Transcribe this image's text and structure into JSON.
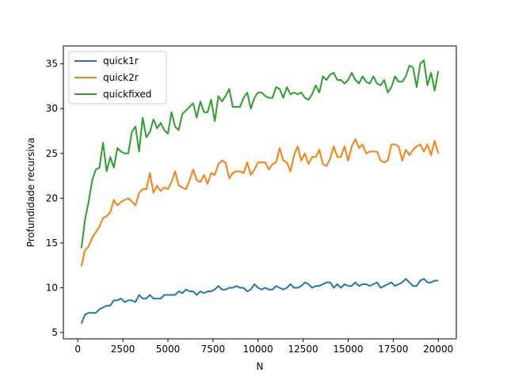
{
  "chart_data": {
    "type": "line",
    "xlabel": "N",
    "ylabel": "Profundidade recursiva",
    "xlim": [
      -800,
      21000
    ],
    "ylim": [
      4.3,
      37.0
    ],
    "xticks": [
      0,
      2500,
      5000,
      7500,
      10000,
      12500,
      15000,
      17500,
      20000
    ],
    "yticks": [
      5,
      10,
      15,
      20,
      25,
      30,
      35
    ],
    "grid": false,
    "legend_placement": "top-left",
    "series": [
      {
        "name": "quick1r",
        "color": "#1f77b4",
        "points": [
          [
            200,
            6.0
          ],
          [
            400,
            7.0
          ],
          [
            600,
            7.2
          ],
          [
            800,
            7.2
          ],
          [
            1000,
            7.2
          ],
          [
            1200,
            7.6
          ],
          [
            1400,
            7.8
          ],
          [
            1600,
            8.0
          ],
          [
            1800,
            8.0
          ],
          [
            2000,
            8.6
          ],
          [
            2200,
            8.6
          ],
          [
            2400,
            8.8
          ],
          [
            2600,
            8.4
          ],
          [
            2800,
            8.6
          ],
          [
            3000,
            8.6
          ],
          [
            3200,
            8.4
          ],
          [
            3400,
            9.2
          ],
          [
            3600,
            8.8
          ],
          [
            3800,
            8.8
          ],
          [
            4000,
            9.2
          ],
          [
            4200,
            8.8
          ],
          [
            4400,
            8.8
          ],
          [
            4600,
            8.8
          ],
          [
            4800,
            9.2
          ],
          [
            5000,
            9.2
          ],
          [
            5200,
            9.2
          ],
          [
            5400,
            9.2
          ],
          [
            5600,
            9.6
          ],
          [
            5800,
            9.4
          ],
          [
            6000,
            9.8
          ],
          [
            6200,
            9.6
          ],
          [
            6400,
            9.6
          ],
          [
            6600,
            9.2
          ],
          [
            6800,
            9.6
          ],
          [
            7000,
            9.4
          ],
          [
            7200,
            9.6
          ],
          [
            7400,
            9.6
          ],
          [
            7600,
            9.8
          ],
          [
            7800,
            10.2
          ],
          [
            8000,
            9.8
          ],
          [
            8200,
            9.8
          ],
          [
            8400,
            10.0
          ],
          [
            8600,
            10.0
          ],
          [
            8800,
            10.2
          ],
          [
            9000,
            10.0
          ],
          [
            9200,
            10.0
          ],
          [
            9400,
            9.6
          ],
          [
            9600,
            9.8
          ],
          [
            9800,
            10.4
          ],
          [
            10000,
            10.0
          ],
          [
            10200,
            9.8
          ],
          [
            10400,
            10.0
          ],
          [
            10600,
            9.8
          ],
          [
            10800,
            9.8
          ],
          [
            11000,
            10.2
          ],
          [
            11200,
            10.0
          ],
          [
            11400,
            9.8
          ],
          [
            11600,
            10.0
          ],
          [
            11800,
            10.4
          ],
          [
            12000,
            10.0
          ],
          [
            12200,
            10.0
          ],
          [
            12400,
            10.2
          ],
          [
            12600,
            10.6
          ],
          [
            12800,
            10.4
          ],
          [
            13000,
            10.0
          ],
          [
            13200,
            10.2
          ],
          [
            13400,
            10.2
          ],
          [
            13600,
            10.4
          ],
          [
            13800,
            10.6
          ],
          [
            14000,
            10.6
          ],
          [
            14200,
            10.0
          ],
          [
            14400,
            10.4
          ],
          [
            14600,
            10.0
          ],
          [
            14800,
            10.4
          ],
          [
            15000,
            10.2
          ],
          [
            15200,
            10.2
          ],
          [
            15400,
            10.6
          ],
          [
            15600,
            10.2
          ],
          [
            15800,
            10.4
          ],
          [
            16000,
            10.4
          ],
          [
            16200,
            10.2
          ],
          [
            16400,
            10.4
          ],
          [
            16600,
            10.6
          ],
          [
            16800,
            10.0
          ],
          [
            17000,
            10.2
          ],
          [
            17200,
            10.4
          ],
          [
            17400,
            10.6
          ],
          [
            17600,
            10.2
          ],
          [
            17800,
            10.4
          ],
          [
            18000,
            10.6
          ],
          [
            18200,
            11.0
          ],
          [
            18400,
            10.6
          ],
          [
            18600,
            10.2
          ],
          [
            18800,
            10.2
          ],
          [
            19000,
            10.8
          ],
          [
            19200,
            11.0
          ],
          [
            19400,
            10.6
          ],
          [
            19600,
            10.6
          ],
          [
            19800,
            10.8
          ],
          [
            20000,
            10.8
          ]
        ]
      },
      {
        "name": "quick2r",
        "color": "#ff7f0e",
        "points": [
          [
            200,
            12.4
          ],
          [
            400,
            14.2
          ],
          [
            600,
            14.6
          ],
          [
            800,
            15.6
          ],
          [
            1000,
            16.2
          ],
          [
            1200,
            16.8
          ],
          [
            1400,
            17.8
          ],
          [
            1600,
            18.0
          ],
          [
            1800,
            18.4
          ],
          [
            2000,
            19.8
          ],
          [
            2200,
            19.2
          ],
          [
            2400,
            19.6
          ],
          [
            2600,
            19.8
          ],
          [
            2800,
            20.0
          ],
          [
            3000,
            19.6
          ],
          [
            3200,
            19.2
          ],
          [
            3400,
            20.6
          ],
          [
            3600,
            21.0
          ],
          [
            3800,
            21.0
          ],
          [
            4000,
            22.8
          ],
          [
            4200,
            20.6
          ],
          [
            4400,
            21.4
          ],
          [
            4600,
            20.8
          ],
          [
            4800,
            21.2
          ],
          [
            5000,
            21.0
          ],
          [
            5200,
            21.8
          ],
          [
            5400,
            23.0
          ],
          [
            5600,
            21.4
          ],
          [
            5800,
            21.2
          ],
          [
            6000,
            21.0
          ],
          [
            6200,
            22.0
          ],
          [
            6400,
            23.2
          ],
          [
            6600,
            22.0
          ],
          [
            6800,
            21.8
          ],
          [
            7000,
            22.6
          ],
          [
            7200,
            21.6
          ],
          [
            7400,
            22.8
          ],
          [
            7600,
            22.6
          ],
          [
            7800,
            23.8
          ],
          [
            8000,
            24.2
          ],
          [
            8200,
            24.0
          ],
          [
            8400,
            22.2
          ],
          [
            8600,
            22.8
          ],
          [
            8800,
            23.0
          ],
          [
            9000,
            23.0
          ],
          [
            9200,
            22.8
          ],
          [
            9400,
            24.0
          ],
          [
            9600,
            22.6
          ],
          [
            9800,
            23.2
          ],
          [
            10000,
            24.0
          ],
          [
            10200,
            24.0
          ],
          [
            10400,
            24.0
          ],
          [
            10600,
            23.2
          ],
          [
            10800,
            23.8
          ],
          [
            11000,
            24.0
          ],
          [
            11200,
            25.6
          ],
          [
            11400,
            24.2
          ],
          [
            11600,
            24.0
          ],
          [
            11800,
            23.0
          ],
          [
            12000,
            24.8
          ],
          [
            12200,
            25.8
          ],
          [
            12400,
            24.2
          ],
          [
            12600,
            25.0
          ],
          [
            12800,
            23.8
          ],
          [
            13000,
            24.6
          ],
          [
            13200,
            24.6
          ],
          [
            13400,
            25.4
          ],
          [
            13600,
            23.8
          ],
          [
            13800,
            23.6
          ],
          [
            14000,
            24.4
          ],
          [
            14200,
            25.8
          ],
          [
            14400,
            24.6
          ],
          [
            14600,
            24.6
          ],
          [
            14800,
            25.8
          ],
          [
            15000,
            24.2
          ],
          [
            15200,
            25.8
          ],
          [
            15400,
            26.6
          ],
          [
            15600,
            25.6
          ],
          [
            15800,
            26.0
          ],
          [
            16000,
            25.0
          ],
          [
            16200,
            25.2
          ],
          [
            16400,
            25.2
          ],
          [
            16600,
            25.2
          ],
          [
            16800,
            24.2
          ],
          [
            17000,
            24.0
          ],
          [
            17200,
            24.2
          ],
          [
            17400,
            26.0
          ],
          [
            17600,
            26.0
          ],
          [
            17800,
            25.8
          ],
          [
            18000,
            24.2
          ],
          [
            18200,
            25.4
          ],
          [
            18400,
            24.8
          ],
          [
            18600,
            25.4
          ],
          [
            18800,
            25.8
          ],
          [
            19000,
            26.0
          ],
          [
            19200,
            25.2
          ],
          [
            19400,
            26.0
          ],
          [
            19600,
            24.8
          ],
          [
            19800,
            26.4
          ],
          [
            20000,
            25.0
          ]
        ]
      },
      {
        "name": "quickfixed",
        "color": "#2ca02c",
        "points": [
          [
            200,
            14.4
          ],
          [
            400,
            17.6
          ],
          [
            600,
            19.6
          ],
          [
            800,
            22.0
          ],
          [
            1000,
            23.2
          ],
          [
            1200,
            23.4
          ],
          [
            1400,
            26.2
          ],
          [
            1600,
            23.0
          ],
          [
            1800,
            24.6
          ],
          [
            2000,
            23.4
          ],
          [
            2200,
            25.6
          ],
          [
            2400,
            25.2
          ],
          [
            2600,
            25.0
          ],
          [
            2800,
            25.0
          ],
          [
            3000,
            27.4
          ],
          [
            3200,
            28.0
          ],
          [
            3400,
            25.2
          ],
          [
            3600,
            29.0
          ],
          [
            3800,
            26.8
          ],
          [
            4000,
            27.4
          ],
          [
            4200,
            28.8
          ],
          [
            4400,
            27.8
          ],
          [
            4600,
            28.4
          ],
          [
            4800,
            27.6
          ],
          [
            5000,
            27.2
          ],
          [
            5200,
            29.6
          ],
          [
            5400,
            28.0
          ],
          [
            5600,
            27.6
          ],
          [
            5800,
            29.4
          ],
          [
            6000,
            29.8
          ],
          [
            6200,
            30.2
          ],
          [
            6400,
            30.6
          ],
          [
            6600,
            29.0
          ],
          [
            6800,
            30.8
          ],
          [
            7000,
            29.6
          ],
          [
            7200,
            29.6
          ],
          [
            7400,
            31.0
          ],
          [
            7600,
            28.6
          ],
          [
            7800,
            31.4
          ],
          [
            8000,
            30.8
          ],
          [
            8200,
            31.4
          ],
          [
            8400,
            32.2
          ],
          [
            8600,
            30.2
          ],
          [
            8800,
            30.2
          ],
          [
            9000,
            30.2
          ],
          [
            9200,
            31.2
          ],
          [
            9400,
            31.8
          ],
          [
            9600,
            30.0
          ],
          [
            9800,
            31.2
          ],
          [
            10000,
            31.8
          ],
          [
            10200,
            31.8
          ],
          [
            10400,
            31.4
          ],
          [
            10600,
            31.2
          ],
          [
            10800,
            31.2
          ],
          [
            11000,
            32.4
          ],
          [
            11200,
            32.2
          ],
          [
            11400,
            31.2
          ],
          [
            11600,
            32.4
          ],
          [
            11800,
            31.6
          ],
          [
            12000,
            31.8
          ],
          [
            12200,
            31.6
          ],
          [
            12400,
            31.8
          ],
          [
            12600,
            31.2
          ],
          [
            12800,
            31.0
          ],
          [
            13000,
            31.6
          ],
          [
            13200,
            32.6
          ],
          [
            13400,
            31.8
          ],
          [
            13600,
            33.6
          ],
          [
            13800,
            33.2
          ],
          [
            14000,
            33.8
          ],
          [
            14200,
            34.0
          ],
          [
            14400,
            33.2
          ],
          [
            14600,
            33.2
          ],
          [
            14800,
            32.8
          ],
          [
            15000,
            33.2
          ],
          [
            15200,
            34.0
          ],
          [
            15400,
            33.2
          ],
          [
            15600,
            32.8
          ],
          [
            15800,
            33.6
          ],
          [
            16000,
            33.0
          ],
          [
            16200,
            32.8
          ],
          [
            16400,
            33.6
          ],
          [
            16600,
            32.8
          ],
          [
            16800,
            32.6
          ],
          [
            17000,
            33.2
          ],
          [
            17200,
            31.8
          ],
          [
            17400,
            32.4
          ],
          [
            17600,
            33.6
          ],
          [
            17800,
            33.0
          ],
          [
            18000,
            33.0
          ],
          [
            18200,
            33.6
          ],
          [
            18400,
            34.8
          ],
          [
            18600,
            34.6
          ],
          [
            18800,
            32.4
          ],
          [
            19000,
            35.0
          ],
          [
            19200,
            35.4
          ],
          [
            19400,
            32.6
          ],
          [
            19600,
            34.0
          ],
          [
            19800,
            32.0
          ],
          [
            20000,
            34.2
          ]
        ]
      }
    ]
  }
}
